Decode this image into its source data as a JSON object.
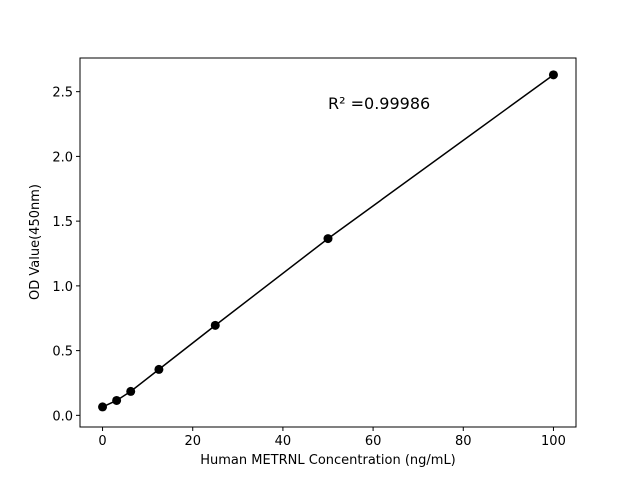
{
  "chart_data": {
    "type": "scatter",
    "x_label": "Human METRNL Concentration (ng/mL)",
    "y_label": "OD Value(450nm)",
    "annotation": "R² =0.99986",
    "x": [
      0,
      3.125,
      6.25,
      12.5,
      25,
      50,
      100
    ],
    "series": [
      {
        "color": "#000000",
        "values": [
          0.065,
          0.115,
          0.185,
          0.355,
          0.695,
          1.365,
          2.63
        ]
      }
    ],
    "xlim": [
      -5,
      105
    ],
    "ylim": [
      -0.09,
      2.76
    ],
    "xticks": [
      0,
      20,
      40,
      60,
      80,
      100
    ],
    "yticks": [
      {
        "value": 0,
        "label": "0.0"
      },
      {
        "value": 0.5,
        "label": "0.5"
      },
      {
        "value": 1,
        "label": "1.0"
      },
      {
        "value": 1.5,
        "label": "1.5"
      },
      {
        "value": 2,
        "label": "2.0"
      },
      {
        "value": 2.5,
        "label": "2.5"
      }
    ],
    "grid": false
  }
}
